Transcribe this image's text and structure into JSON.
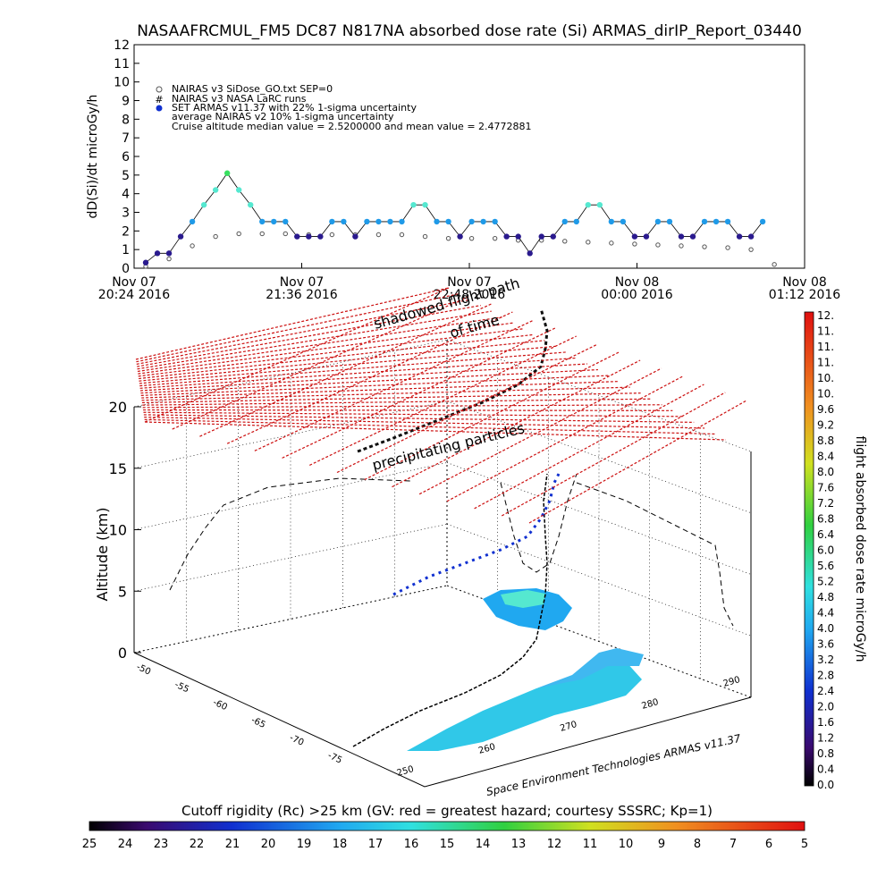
{
  "title": "NASAAFRCMUL_FM5 DC87 N817NA absorbed dose rate (Si) ARMAS_dirIP_Report_03440",
  "chart_data": [
    {
      "type": "scatter",
      "ylabel": "dD(Si)/dt microGy/h",
      "ylim": [
        0,
        12
      ],
      "yticks": [
        "0",
        "1",
        "2",
        "3",
        "4",
        "5",
        "6",
        "7",
        "8",
        "9",
        "10",
        "11",
        "12"
      ],
      "xticks": [
        {
          "date": "Nov 07",
          "time": "20:24 2016"
        },
        {
          "date": "Nov 07",
          "time": "21:36 2016"
        },
        {
          "date": "Nov 07",
          "time": "22:48 2016"
        },
        {
          "date": "Nov 08",
          "time": "00:00 2016"
        },
        {
          "date": "Nov 08",
          "time": "01:12 2016"
        }
      ],
      "xlim_minutes": [
        0,
        288
      ],
      "legend": [
        "NAIRAS v3 SiDose_GO.txt SEP=0",
        "NAIRAS v3 NASA LaRC runs",
        "SET ARMAS v11.37 with 22% 1-sigma uncertainty",
        "average NAIRAS v2 10% 1-sigma uncertainty",
        "Cruise altitude median value = 2.5200000 and mean value = 2.4772881"
      ],
      "series": [
        {
          "name": "SET ARMAS v11.37 with 22% 1-sigma uncertainty",
          "x_minutes": [
            5,
            10,
            15,
            20,
            25,
            30,
            35,
            40,
            45,
            50,
            55,
            60,
            65,
            70,
            75,
            80,
            85,
            90,
            95,
            100,
            105,
            110,
            115,
            120,
            125,
            130,
            135,
            140,
            145,
            150,
            155,
            160,
            165,
            170,
            175,
            180,
            185,
            190,
            195,
            200,
            205,
            210,
            215,
            220,
            225,
            230,
            235,
            240,
            245,
            250,
            255,
            260,
            265,
            270
          ],
          "values": [
            0.3,
            0.8,
            0.8,
            1.7,
            2.5,
            3.4,
            4.2,
            5.1,
            4.2,
            3.4,
            2.5,
            2.5,
            2.5,
            1.7,
            1.7,
            1.7,
            2.5,
            2.5,
            1.7,
            2.5,
            2.5,
            2.5,
            2.5,
            3.4,
            3.4,
            2.5,
            2.5,
            1.7,
            2.5,
            2.5,
            2.5,
            1.7,
            1.7,
            0.8,
            1.7,
            1.7,
            2.5,
            2.5,
            3.4,
            3.4,
            2.5,
            2.5,
            1.7,
            1.7,
            2.5,
            2.5,
            1.7,
            1.7,
            2.5,
            2.5,
            2.5,
            1.7,
            1.7,
            2.5
          ]
        },
        {
          "name": "NAIRAS v3 SiDose_GO.txt SEP=0",
          "x_minutes": [
            5,
            15,
            25,
            35,
            45,
            55,
            65,
            75,
            85,
            95,
            105,
            115,
            125,
            135,
            145,
            155,
            165,
            175,
            185,
            195,
            205,
            215,
            225,
            235,
            245,
            255,
            265,
            275
          ],
          "values": [
            0.1,
            0.5,
            1.2,
            1.7,
            1.85,
            1.85,
            1.85,
            1.8,
            1.8,
            1.8,
            1.8,
            1.8,
            1.7,
            1.6,
            1.6,
            1.6,
            1.5,
            1.5,
            1.45,
            1.4,
            1.35,
            1.3,
            1.25,
            1.2,
            1.15,
            1.1,
            1.0,
            0.2
          ]
        }
      ]
    },
    {
      "type": "scatter",
      "zlabel": "Altitude (km)",
      "zticks": [
        "0",
        "5",
        "10",
        "15",
        "20"
      ],
      "xticks": [
        "250",
        "260",
        "270",
        "280",
        "290"
      ],
      "yticks": [
        "-50",
        "-55",
        "-60",
        "-65",
        "-70",
        "-75"
      ],
      "annotations": [
        "shadowed flight path",
        "of time",
        "precipitating particles"
      ],
      "credit": "Space Environment Technologies ARMAS v11.37"
    }
  ],
  "colorbar_right": {
    "label": "flight absorbed dose rate microGy/h",
    "ticks": [
      "0.0",
      "0.4",
      "0.8",
      "1.2",
      "1.6",
      "2.0",
      "2.4",
      "2.8",
      "3.2",
      "3.6",
      "4.0",
      "4.4",
      "4.8",
      "5.2",
      "5.6",
      "6.0",
      "6.4",
      "6.8",
      "7.2",
      "7.6",
      "8.0",
      "8.4",
      "8.8",
      "9.2",
      "9.6",
      "10.",
      "10.",
      "11.",
      "11.",
      "11.",
      "12."
    ]
  },
  "colorbar_bottom": {
    "label": "Cutoff rigidity (Rc) >25 km (GV: red = greatest hazard; courtesy SSSRC; Kp=1)",
    "ticks": [
      "25",
      "24",
      "23",
      "22",
      "21",
      "20",
      "19",
      "18",
      "17",
      "16",
      "15",
      "14",
      "13",
      "12",
      "11",
      "10",
      "9",
      "8",
      "7",
      "6",
      "5"
    ]
  },
  "colors": {
    "armas_low": "#2a1a8e",
    "armas_mid": "#1f9ae8",
    "armas_high": "#55e8d0",
    "armas_peak": "#38e060",
    "nairas": "#555555",
    "cutoff_grid": "#cc1010",
    "land": "#30c8e8"
  }
}
